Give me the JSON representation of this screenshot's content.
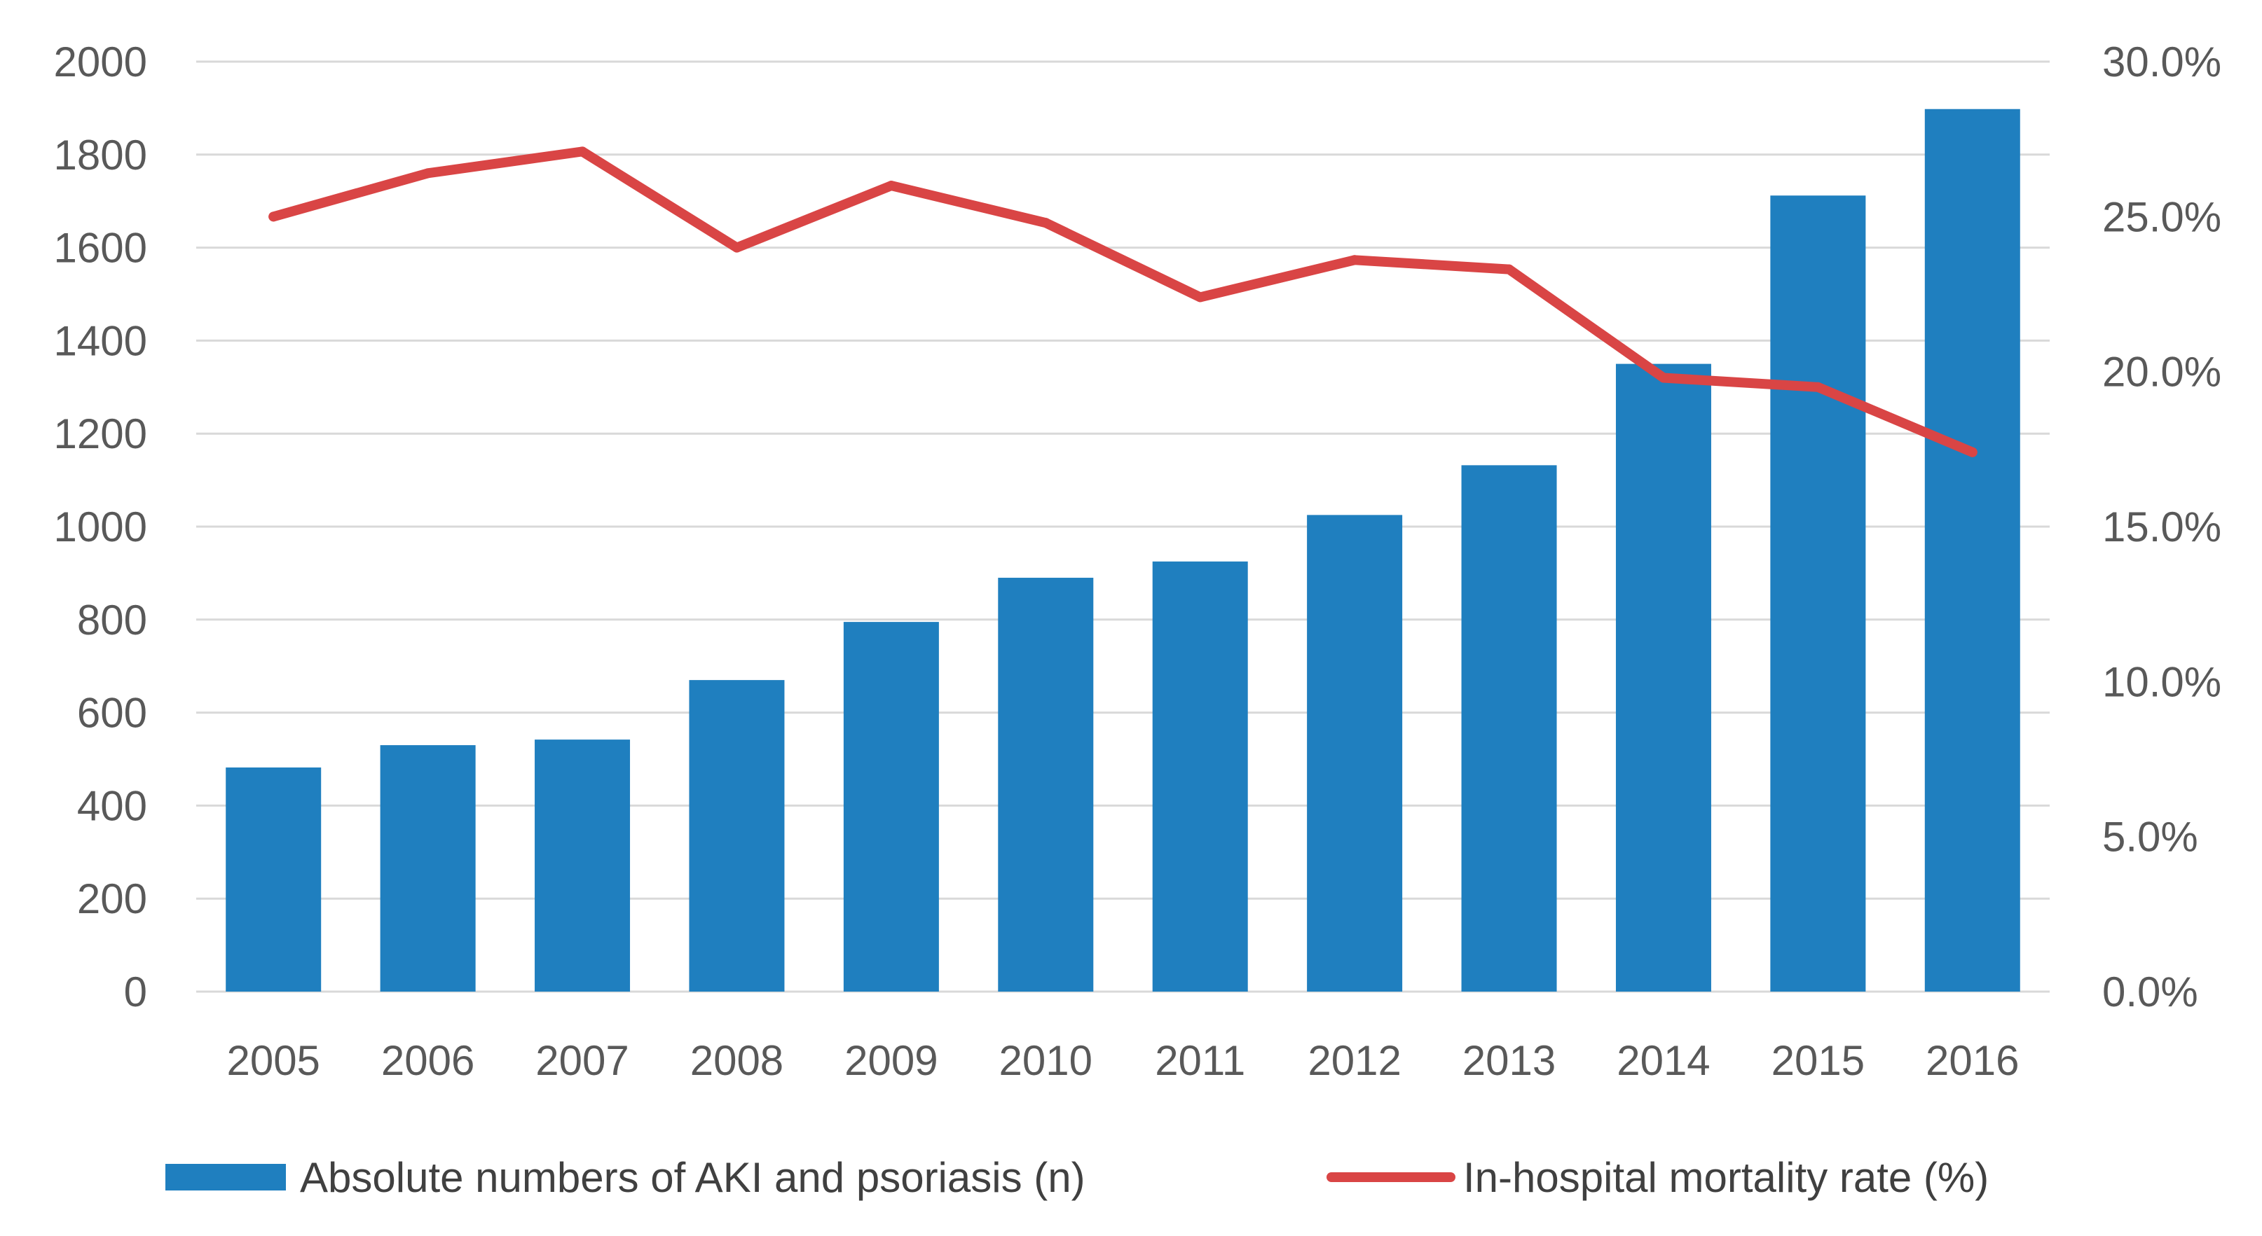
{
  "chart_data": {
    "type": "bar",
    "title": "",
    "xlabel": "",
    "ylabel": "",
    "categories": [
      "2005",
      "2006",
      "2007",
      "2008",
      "2009",
      "2010",
      "2011",
      "2012",
      "2013",
      "2014",
      "2015",
      "2016"
    ],
    "series": [
      {
        "name": "Absolute numbers of AKI and psoriasis (n)",
        "type": "bar",
        "axis": "left",
        "color": "#1f7fbf",
        "values": [
          482,
          530,
          542,
          670,
          795,
          890,
          925,
          1025,
          1132,
          1350,
          1712,
          1898
        ]
      },
      {
        "name": "In-hospital mortality rate (%)",
        "type": "line",
        "axis": "right",
        "color": "#d94545",
        "values": [
          25.0,
          26.4,
          27.1,
          24.0,
          26.0,
          24.8,
          22.4,
          23.6,
          23.3,
          19.8,
          19.5,
          17.4
        ]
      }
    ],
    "y_left": {
      "ylim": [
        0,
        2000
      ],
      "ticks": [
        "0",
        "200",
        "400",
        "600",
        "800",
        "1000",
        "1200",
        "1400",
        "1600",
        "1800",
        "2000"
      ]
    },
    "y_right": {
      "ylim": [
        0,
        30
      ],
      "ticks": [
        "0.0%",
        "5.0%",
        "10.0%",
        "15.0%",
        "20.0%",
        "25.0%",
        "30.0%"
      ]
    },
    "grid": true,
    "legend_position": "bottom"
  }
}
